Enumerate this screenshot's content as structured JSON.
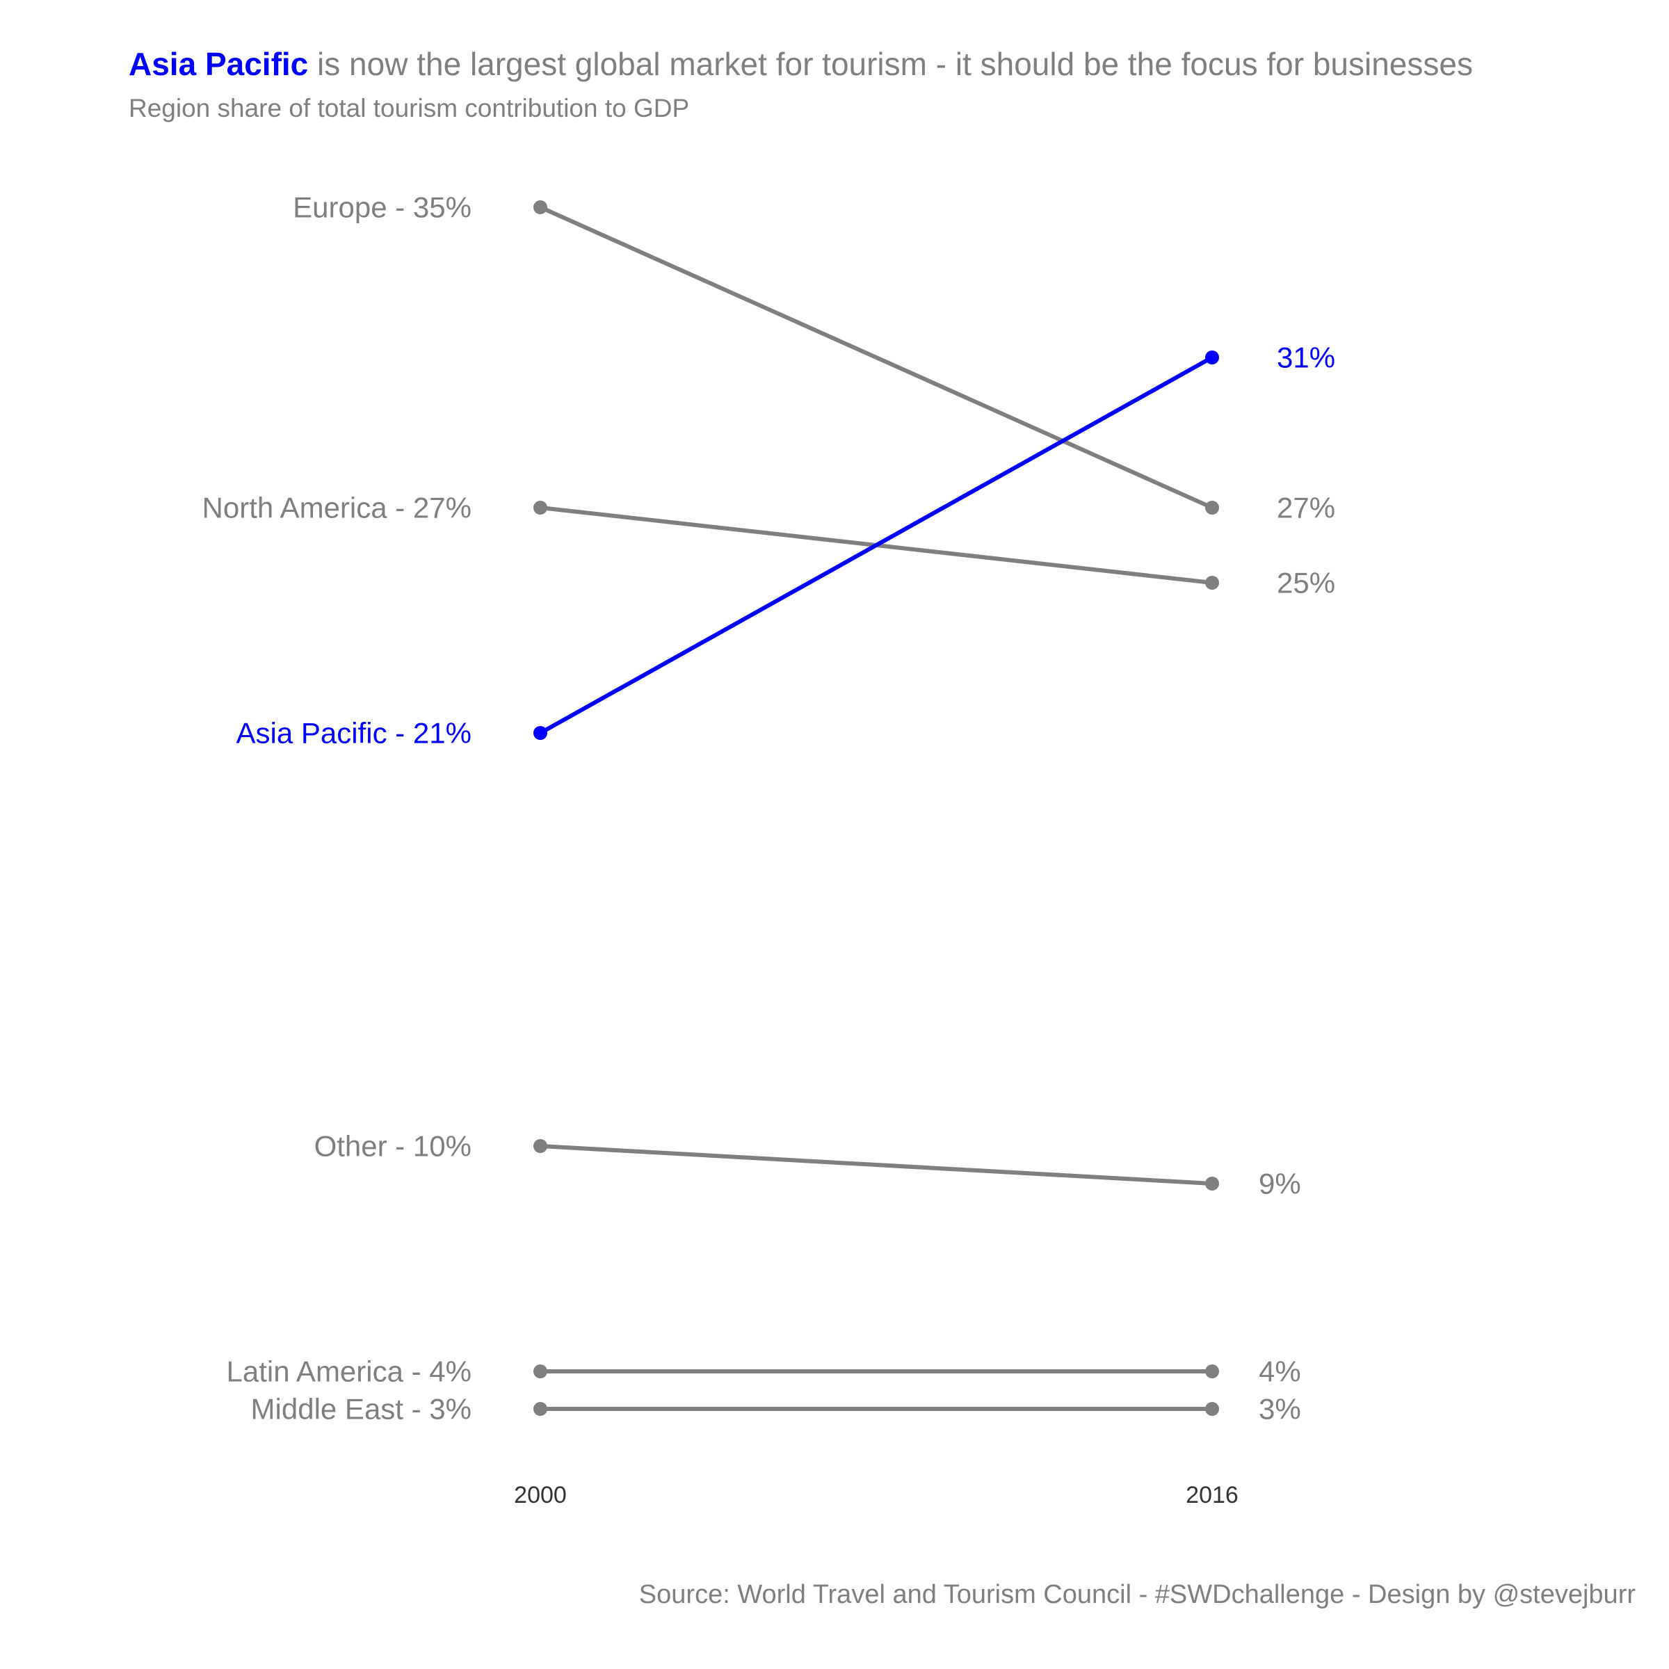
{
  "title": {
    "highlight": "Asia Pacific",
    "rest": " is now the largest global market for tourism - it should be the focus for businesses"
  },
  "subtitle": "Region share of total tourism contribution to GDP",
  "caption": "Source: World Travel and Tourism Council - #SWDchallenge - Design by @stevejburr",
  "colors": {
    "highlight": "#0000ff",
    "default": "#7f7f7f",
    "tick": "#333333",
    "background": "#ffffff"
  },
  "chart_data": {
    "type": "line",
    "subtype": "slope",
    "x": [
      "2000",
      "2016"
    ],
    "ylim": [
      0,
      37
    ],
    "grid": false,
    "legend": "none",
    "series": [
      {
        "name": "Europe",
        "values": [
          35,
          27
        ],
        "start_label": "Europe - 35%",
        "end_label": "27%",
        "highlight": false
      },
      {
        "name": "North America",
        "values": [
          27,
          25
        ],
        "start_label": "North America - 27%",
        "end_label": "25%",
        "highlight": false
      },
      {
        "name": "Asia Pacific",
        "values": [
          21,
          31
        ],
        "start_label": "Asia Pacific - 21%",
        "end_label": "31%",
        "highlight": true
      },
      {
        "name": "Other",
        "values": [
          10,
          9
        ],
        "start_label": "Other - 10%",
        "end_label": "9%",
        "highlight": false
      },
      {
        "name": "Latin America",
        "values": [
          4,
          4
        ],
        "start_label": "Latin America - 4%",
        "end_label": "4%",
        "highlight": false
      },
      {
        "name": "Middle East",
        "values": [
          3,
          3
        ],
        "start_label": "Middle East - 3%",
        "end_label": "3%",
        "highlight": false
      }
    ]
  }
}
